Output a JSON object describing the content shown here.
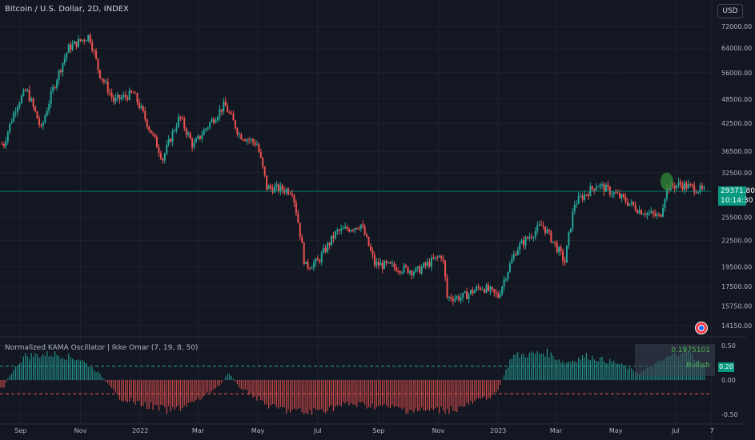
{
  "header": {
    "symbol_title": "Bitcoin / U.S. Dollar, 2D, INDEX",
    "currency_button": "USD"
  },
  "indicator": {
    "title": "Normalized KAMA Oscillator | Ikke Omar (7, 19, 8, 50)",
    "info_value": "0.1975101",
    "info_signal": "Bullish"
  },
  "price_badge": {
    "price": "29371.80",
    "countdown": "10:14:30"
  },
  "osc_badge": {
    "value": "0.20"
  },
  "colors": {
    "up": "#26a69a",
    "down": "#ef5350",
    "bg": "#131722",
    "grid": "#1e222d",
    "badge": "#089981",
    "dashed_upper": "#26a69a",
    "dashed_lower": "#ef5350"
  },
  "icons": {
    "flag": "us-flag-icon"
  },
  "chart_data": [
    {
      "type": "candlestick",
      "title": "Bitcoin / U.S. Dollar, 2D, INDEX",
      "y_scale": "log",
      "y_ticks": [
        "72000.00",
        "64000.00",
        "56000.00",
        "48500.00",
        "42500.00",
        "36500.00",
        "32500.00",
        "25500.00",
        "22500.00",
        "19500.00",
        "17500.00",
        "15750.00",
        "14150.00"
      ],
      "x_ticks": [
        "Sep",
        "Nov",
        "2022",
        "Mar",
        "May",
        "Jul",
        "Sep",
        "Nov",
        "2023",
        "Mar",
        "May",
        "Jul",
        "7"
      ],
      "last_price": 29371.8,
      "close_path": [
        {
          "x": "2021-08-15",
          "y": 38000
        },
        {
          "x": "2021-08-28",
          "y": 47000
        },
        {
          "x": "2021-09-07",
          "y": 51000
        },
        {
          "x": "2021-09-22",
          "y": 41000
        },
        {
          "x": "2021-10-05",
          "y": 52000
        },
        {
          "x": "2021-10-20",
          "y": 64000
        },
        {
          "x": "2021-11-10",
          "y": 68500
        },
        {
          "x": "2021-11-20",
          "y": 56000
        },
        {
          "x": "2021-12-05",
          "y": 48000
        },
        {
          "x": "2021-12-25",
          "y": 50000
        },
        {
          "x": "2022-01-10",
          "y": 41500
        },
        {
          "x": "2022-01-24",
          "y": 35000
        },
        {
          "x": "2022-02-10",
          "y": 44000
        },
        {
          "x": "2022-02-24",
          "y": 37500
        },
        {
          "x": "2022-03-28",
          "y": 47000
        },
        {
          "x": "2022-04-12",
          "y": 40000
        },
        {
          "x": "2022-04-30",
          "y": 38000
        },
        {
          "x": "2022-05-10",
          "y": 30000
        },
        {
          "x": "2022-06-05",
          "y": 29500
        },
        {
          "x": "2022-06-18",
          "y": 19500
        },
        {
          "x": "2022-07-01",
          "y": 20000
        },
        {
          "x": "2022-07-20",
          "y": 23500
        },
        {
          "x": "2022-08-14",
          "y": 24500
        },
        {
          "x": "2022-08-28",
          "y": 19800
        },
        {
          "x": "2022-09-15",
          "y": 19500
        },
        {
          "x": "2022-10-10",
          "y": 19000
        },
        {
          "x": "2022-11-05",
          "y": 20800
        },
        {
          "x": "2022-11-10",
          "y": 16500
        },
        {
          "x": "2022-11-25",
          "y": 16500
        },
        {
          "x": "2022-12-15",
          "y": 17500
        },
        {
          "x": "2023-01-01",
          "y": 16600
        },
        {
          "x": "2023-01-20",
          "y": 21500
        },
        {
          "x": "2023-02-15",
          "y": 24500
        },
        {
          "x": "2023-03-10",
          "y": 20000
        },
        {
          "x": "2023-03-20",
          "y": 27500
        },
        {
          "x": "2023-04-12",
          "y": 30500
        },
        {
          "x": "2023-05-05",
          "y": 28500
        },
        {
          "x": "2023-05-25",
          "y": 26500
        },
        {
          "x": "2023-06-15",
          "y": 25500
        },
        {
          "x": "2023-06-22",
          "y": 30000
        },
        {
          "x": "2023-07-05",
          "y": 30500
        },
        {
          "x": "2023-07-20",
          "y": 29900
        },
        {
          "x": "2023-07-30",
          "y": 29371.8
        }
      ],
      "marker": {
        "x": "2023-06-22",
        "y": 31000,
        "note": "green circle"
      }
    },
    {
      "type": "histogram",
      "title": "Normalized KAMA Oscillator | Ikke Omar (7, 19, 8, 50)",
      "y_ticks": [
        "0.50",
        "0.00",
        "-0.50"
      ],
      "ylim": [
        -0.55,
        0.55
      ],
      "levels": [
        0.2,
        -0.2
      ],
      "last_value": 0.1975101,
      "signal": "Bullish",
      "values_path": [
        {
          "x": "2021-08-15",
          "y": -0.1
        },
        {
          "x": "2021-08-20",
          "y": 0.05
        },
        {
          "x": "2021-09-05",
          "y": 0.35
        },
        {
          "x": "2021-10-05",
          "y": 0.38
        },
        {
          "x": "2021-11-01",
          "y": 0.3
        },
        {
          "x": "2021-11-20",
          "y": 0.1
        },
        {
          "x": "2021-12-10",
          "y": -0.25
        },
        {
          "x": "2022-01-01",
          "y": -0.35
        },
        {
          "x": "2022-02-01",
          "y": -0.45
        },
        {
          "x": "2022-03-01",
          "y": -0.3
        },
        {
          "x": "2022-03-25",
          "y": -0.05
        },
        {
          "x": "2022-04-01",
          "y": 0.12
        },
        {
          "x": "2022-04-12",
          "y": -0.1
        },
        {
          "x": "2022-05-15",
          "y": -0.4
        },
        {
          "x": "2022-06-20",
          "y": -0.48
        },
        {
          "x": "2022-08-01",
          "y": -0.35
        },
        {
          "x": "2022-09-01",
          "y": -0.38
        },
        {
          "x": "2022-10-15",
          "y": -0.45
        },
        {
          "x": "2022-11-20",
          "y": -0.42
        },
        {
          "x": "2022-12-30",
          "y": -0.2
        },
        {
          "x": "2023-01-05",
          "y": 0.0
        },
        {
          "x": "2023-01-15",
          "y": 0.35
        },
        {
          "x": "2023-02-20",
          "y": 0.4
        },
        {
          "x": "2023-03-10",
          "y": 0.25
        },
        {
          "x": "2023-04-01",
          "y": 0.35
        },
        {
          "x": "2023-05-01",
          "y": 0.25
        },
        {
          "x": "2023-05-25",
          "y": 0.1
        },
        {
          "x": "2023-06-20",
          "y": 0.3
        },
        {
          "x": "2023-07-10",
          "y": 0.45
        },
        {
          "x": "2023-07-30",
          "y": 0.2
        }
      ]
    }
  ]
}
